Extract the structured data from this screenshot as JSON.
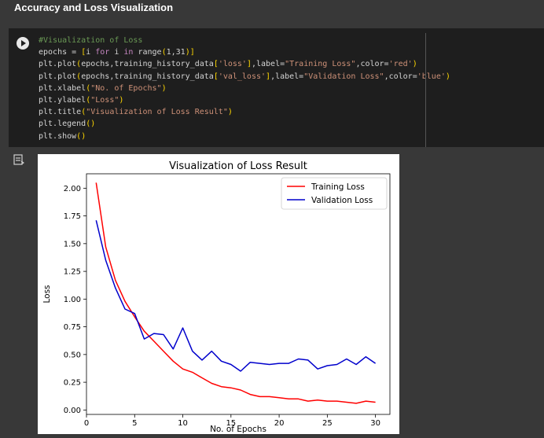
{
  "section": {
    "title": "Accuracy and Loss Visualization"
  },
  "code": {
    "lines": [
      [
        {
          "t": "#Visualization of Loss",
          "c": "c-comment"
        }
      ],
      [
        {
          "t": "epochs = ",
          "c": "c-id"
        },
        {
          "t": "[",
          "c": "c-brk"
        },
        {
          "t": "i ",
          "c": "c-id"
        },
        {
          "t": "for",
          "c": "c-kw"
        },
        {
          "t": " i ",
          "c": "c-id"
        },
        {
          "t": "in",
          "c": "c-kw"
        },
        {
          "t": " range",
          "c": "c-id"
        },
        {
          "t": "(",
          "c": "c-brk"
        },
        {
          "t": "1,31",
          "c": "c-id"
        },
        {
          "t": ")",
          "c": "c-brk"
        },
        {
          "t": "]",
          "c": "c-brk"
        }
      ],
      [
        {
          "t": "plt.plot",
          "c": "c-id"
        },
        {
          "t": "(",
          "c": "c-brk"
        },
        {
          "t": "epochs,training_history_data",
          "c": "c-id"
        },
        {
          "t": "[",
          "c": "c-brk"
        },
        {
          "t": "'loss'",
          "c": "c-str"
        },
        {
          "t": "]",
          "c": "c-brk"
        },
        {
          "t": ",label=",
          "c": "c-id"
        },
        {
          "t": "\"Training Loss\"",
          "c": "c-str"
        },
        {
          "t": ",color=",
          "c": "c-id"
        },
        {
          "t": "'red'",
          "c": "c-str"
        },
        {
          "t": ")",
          "c": "c-brk"
        }
      ],
      [
        {
          "t": "plt.plot",
          "c": "c-id"
        },
        {
          "t": "(",
          "c": "c-brk"
        },
        {
          "t": "epochs,training_history_data",
          "c": "c-id"
        },
        {
          "t": "[",
          "c": "c-brk"
        },
        {
          "t": "'val_loss'",
          "c": "c-str"
        },
        {
          "t": "]",
          "c": "c-brk"
        },
        {
          "t": ",label=",
          "c": "c-id"
        },
        {
          "t": "\"Validation Loss\"",
          "c": "c-str"
        },
        {
          "t": ",color=",
          "c": "c-id"
        },
        {
          "t": "'blue'",
          "c": "c-str"
        },
        {
          "t": ")",
          "c": "c-brk"
        }
      ],
      [
        {
          "t": "plt.xlabel",
          "c": "c-id"
        },
        {
          "t": "(",
          "c": "c-brk"
        },
        {
          "t": "\"No. of Epochs\"",
          "c": "c-str"
        },
        {
          "t": ")",
          "c": "c-brk"
        }
      ],
      [
        {
          "t": "plt.ylabel",
          "c": "c-id"
        },
        {
          "t": "(",
          "c": "c-brk"
        },
        {
          "t": "\"Loss\"",
          "c": "c-str"
        },
        {
          "t": ")",
          "c": "c-brk"
        }
      ],
      [
        {
          "t": "plt.title",
          "c": "c-id"
        },
        {
          "t": "(",
          "c": "c-brk"
        },
        {
          "t": "\"Visualization of Loss Result\"",
          "c": "c-str"
        },
        {
          "t": ")",
          "c": "c-brk"
        }
      ],
      [
        {
          "t": "plt.legend",
          "c": "c-id"
        },
        {
          "t": "(",
          "c": "c-brk"
        },
        {
          "t": ")",
          "c": "c-brk"
        }
      ],
      [
        {
          "t": "plt.show",
          "c": "c-id"
        },
        {
          "t": "(",
          "c": "c-brk"
        },
        {
          "t": ")",
          "c": "c-brk"
        }
      ]
    ]
  },
  "chart_data": {
    "type": "line",
    "title": "Visualization of Loss Result",
    "xlabel": "No. of Epochs",
    "ylabel": "Loss",
    "xlim": [
      0,
      31.5
    ],
    "ylim": [
      -0.04,
      2.13
    ],
    "xticks": [
      0,
      5,
      10,
      15,
      20,
      25,
      30
    ],
    "yticks": [
      0.0,
      0.25,
      0.5,
      0.75,
      1.0,
      1.25,
      1.5,
      1.75,
      2.0
    ],
    "ytick_labels": [
      "0.00",
      "0.25",
      "0.50",
      "0.75",
      "1.00",
      "1.25",
      "1.50",
      "1.75",
      "2.00"
    ],
    "grid": false,
    "legend": "top-right",
    "x": [
      1,
      2,
      3,
      4,
      5,
      6,
      7,
      8,
      9,
      10,
      11,
      12,
      13,
      14,
      15,
      16,
      17,
      18,
      19,
      20,
      21,
      22,
      23,
      24,
      25,
      26,
      27,
      28,
      29,
      30
    ],
    "series": [
      {
        "name": "Training Loss",
        "color": "#ff0000",
        "values": [
          2.05,
          1.47,
          1.17,
          0.98,
          0.84,
          0.71,
          0.62,
          0.53,
          0.44,
          0.37,
          0.34,
          0.29,
          0.24,
          0.21,
          0.2,
          0.18,
          0.14,
          0.12,
          0.12,
          0.11,
          0.1,
          0.1,
          0.08,
          0.09,
          0.08,
          0.08,
          0.07,
          0.06,
          0.08,
          0.07
        ]
      },
      {
        "name": "Validation Loss",
        "color": "#0000cc",
        "values": [
          1.71,
          1.35,
          1.1,
          0.91,
          0.87,
          0.64,
          0.69,
          0.68,
          0.55,
          0.74,
          0.53,
          0.45,
          0.53,
          0.44,
          0.41,
          0.35,
          0.43,
          0.42,
          0.41,
          0.42,
          0.42,
          0.46,
          0.45,
          0.37,
          0.4,
          0.41,
          0.46,
          0.41,
          0.48,
          0.42
        ]
      }
    ]
  }
}
